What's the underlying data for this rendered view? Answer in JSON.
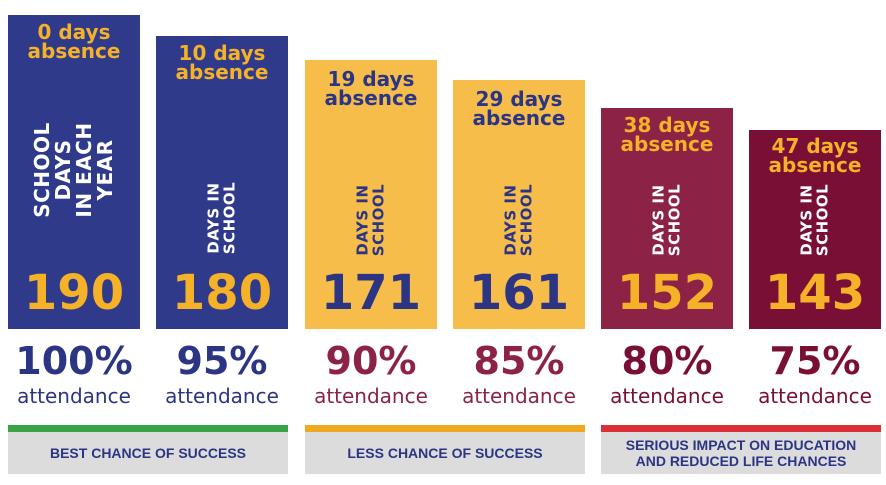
{
  "colors": {
    "navy": "#2b3584",
    "navy_bar": "#2f3a8b",
    "gold": "#f5b128",
    "gold_bar": "#f7bd4b",
    "plum": "#8c2346",
    "maroon": "#7a0f36",
    "green": "#3aa345",
    "orange": "#f0a820",
    "red": "#d93135",
    "band_bg": "#dcdcdc"
  },
  "columns": [
    {
      "absence": "0 days\nabsence",
      "vertical": "SCHOOL DAYS\nIN EACH YEAR",
      "days": "190",
      "percent": "100%",
      "attendance": "attendance"
    },
    {
      "absence": "10 days\nabsence",
      "vertical": "DAYS IN\nSCHOOL",
      "days": "180",
      "percent": "95%",
      "attendance": "attendance"
    },
    {
      "absence": "19 days\nabsence",
      "vertical": "DAYS IN\nSCHOOL",
      "days": "171",
      "percent": "90%",
      "attendance": "attendance"
    },
    {
      "absence": "29 days\nabsence",
      "vertical": "DAYS IN\nSCHOOL",
      "days": "161",
      "percent": "85%",
      "attendance": "attendance"
    },
    {
      "absence": "38 days\nabsence",
      "vertical": "DAYS IN\nSCHOOL",
      "days": "152",
      "percent": "80%",
      "attendance": "attendance"
    },
    {
      "absence": "47 days\nabsence",
      "vertical": "DAYS IN\nSCHOOL",
      "days": "143",
      "percent": "75%",
      "attendance": "attendance"
    }
  ],
  "bands": [
    {
      "label": "BEST CHANCE OF SUCCESS"
    },
    {
      "label": "LESS CHANCE OF SUCCESS"
    },
    {
      "label": "SERIOUS IMPACT ON EDUCATION\nAND REDUCED LIFE CHANCES"
    }
  ]
}
